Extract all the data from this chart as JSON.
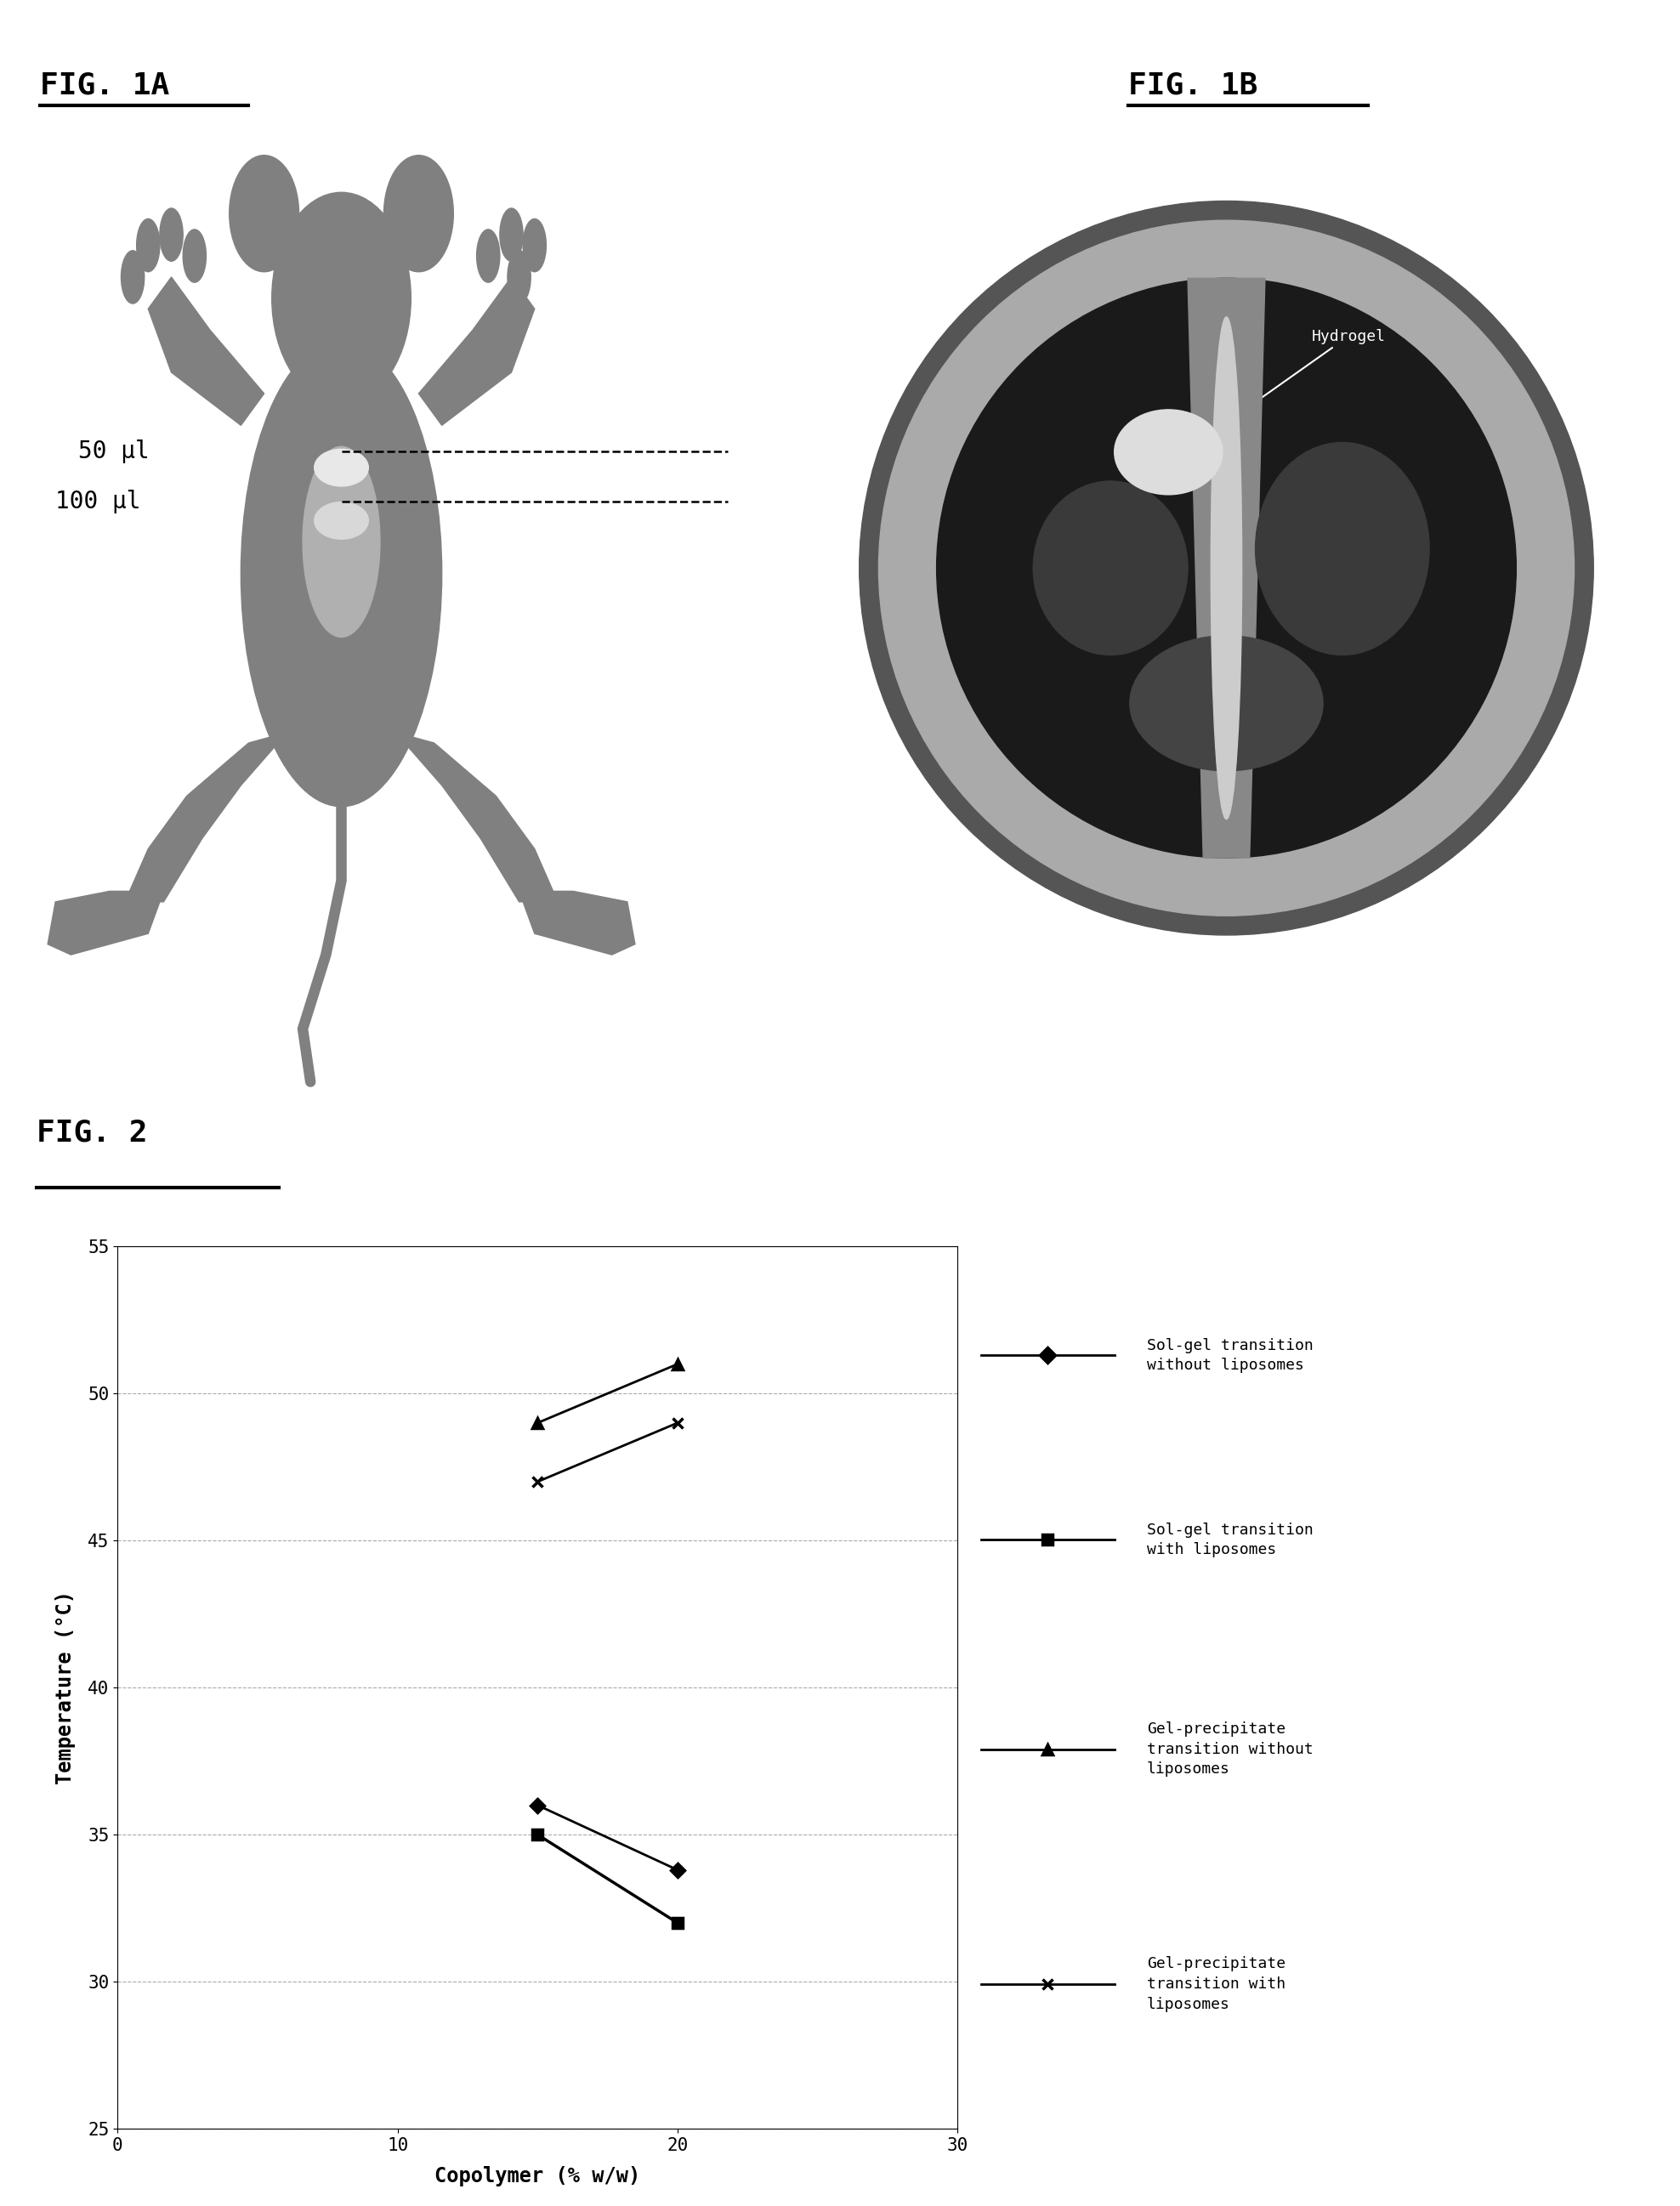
{
  "fig_1a_label": "FIG. 1A",
  "fig_1b_label": "FIG. 1B",
  "fig_2_label": "FIG. 2",
  "mouse_label_50": "50 µl",
  "mouse_label_100": "100 µl",
  "xlabel": "Copolymer (% w/w)",
  "ylabel": "Temperature (°C)",
  "xlim": [
    0,
    30
  ],
  "ylim": [
    25,
    55
  ],
  "xticks": [
    0,
    10,
    20,
    30
  ],
  "yticks": [
    25,
    30,
    35,
    40,
    45,
    50,
    55
  ],
  "series": [
    {
      "name": "Sol-gel transition\nwithout liposomes",
      "x": [
        15,
        20
      ],
      "y": [
        36.0,
        33.8
      ],
      "marker": "D",
      "color": "#000000",
      "linewidth": 2,
      "markersize": 8
    },
    {
      "name": "Sol-gel transition\nwith liposomes",
      "x": [
        15,
        20
      ],
      "y": [
        35.0,
        32.0
      ],
      "marker": "s",
      "color": "#000000",
      "linewidth": 2.5,
      "markersize": 8
    },
    {
      "name": "Gel-precipitate\ntransition without\nliposomes",
      "x": [
        15,
        20
      ],
      "y": [
        49.0,
        51.0
      ],
      "marker": "^",
      "color": "#000000",
      "linewidth": 2,
      "markersize": 8
    },
    {
      "name": "Gel-precipitate\ntransition with\nliposomes",
      "x": [
        15,
        20
      ],
      "y": [
        47.0,
        49.0
      ],
      "marker": "x",
      "color": "#000000",
      "linewidth": 2,
      "markersize": 9
    }
  ],
  "background_color": "#ffffff",
  "grid_color": "#aaaaaa",
  "font_color": "#000000",
  "legend_entries": [
    {
      "marker": "D",
      "label": "Sol-gel transition\nwithout liposomes"
    },
    {
      "marker": "s",
      "label": "Sol-gel transition\nwith liposomes"
    },
    {
      "marker": "^",
      "label": "Gel-precipitate\ntransition without\nliposomes"
    },
    {
      "marker": "x",
      "label": "Gel-precipitate\ntransition with\nliposomes"
    }
  ]
}
